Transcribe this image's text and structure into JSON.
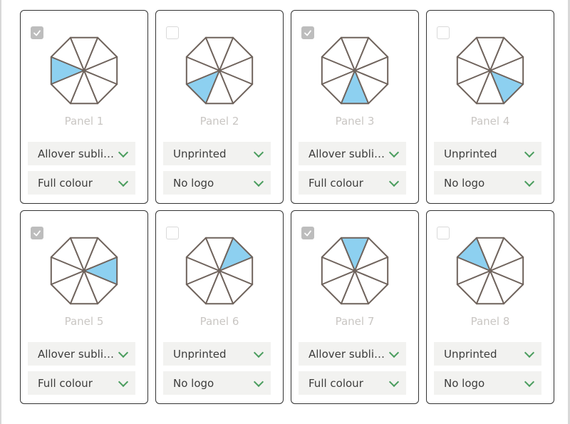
{
  "colors": {
    "accent_green": "#4a9d5e",
    "highlight_blue": "#8dd0f0",
    "umbrella_stroke": "#6f635c",
    "card_border": "#333333",
    "label_gray": "#c9c6c3",
    "dropdown_bg": "#f2f2f0",
    "dropdown_text": "#3c3c3b",
    "checkbox_checked_bg": "#bdbdbd",
    "checkbox_border": "#d9d9d9",
    "page_edge_line": "#d8d8d8"
  },
  "icons": {
    "check": "check-icon",
    "chevron": "chevron-down-icon"
  },
  "panels": [
    {
      "label": "Panel 1",
      "checked": true,
      "highlight": "W",
      "print_option": "Allover sublimat…",
      "logo_option": "Full colour"
    },
    {
      "label": "Panel 2",
      "checked": false,
      "highlight": "SW",
      "print_option": "Unprinted",
      "logo_option": "No logo"
    },
    {
      "label": "Panel 3",
      "checked": true,
      "highlight": "S",
      "print_option": "Allover sublimat…",
      "logo_option": "Full colour"
    },
    {
      "label": "Panel 4",
      "checked": false,
      "highlight": "SE",
      "print_option": "Unprinted",
      "logo_option": "No logo"
    },
    {
      "label": "Panel 5",
      "checked": true,
      "highlight": "E",
      "print_option": "Allover sublimat…",
      "logo_option": "Full colour"
    },
    {
      "label": "Panel 6",
      "checked": false,
      "highlight": "NE",
      "print_option": "Unprinted",
      "logo_option": "No logo"
    },
    {
      "label": "Panel 7",
      "checked": true,
      "highlight": "N",
      "print_option": "Allover sublimat…",
      "logo_option": "Full colour"
    },
    {
      "label": "Panel 8",
      "checked": false,
      "highlight": "NW",
      "print_option": "Unprinted",
      "logo_option": "No logo"
    }
  ]
}
